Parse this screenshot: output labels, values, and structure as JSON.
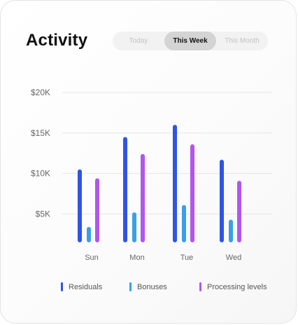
{
  "card": {
    "title": "Activity",
    "tabs": [
      {
        "label": "Today",
        "active": false
      },
      {
        "label": "This Week",
        "active": true
      },
      {
        "label": "This Month",
        "active": false
      }
    ]
  },
  "chart_data": {
    "type": "bar",
    "title": "",
    "xlabel": "",
    "ylabel": "",
    "categories": [
      "Sun",
      "Mon",
      "Tue",
      "Wed"
    ],
    "y_ticks": [
      "$20K",
      "$15K",
      "$10K",
      "$5K"
    ],
    "y_tick_values": [
      20000,
      15000,
      10000,
      5000
    ],
    "ylim": [
      1500,
      20000
    ],
    "grid": true,
    "legend_position": "bottom",
    "series": [
      {
        "name": "Residuals",
        "color": "#2f55e4",
        "values": [
          10500,
          14500,
          16000,
          11700
        ]
      },
      {
        "name": "Bonuses",
        "color": "#3a9fe8",
        "values": [
          3400,
          5200,
          6100,
          4300
        ]
      },
      {
        "name": "Processing levels",
        "color": "#b255f0",
        "values": [
          9400,
          12400,
          13600,
          9100
        ]
      }
    ]
  }
}
